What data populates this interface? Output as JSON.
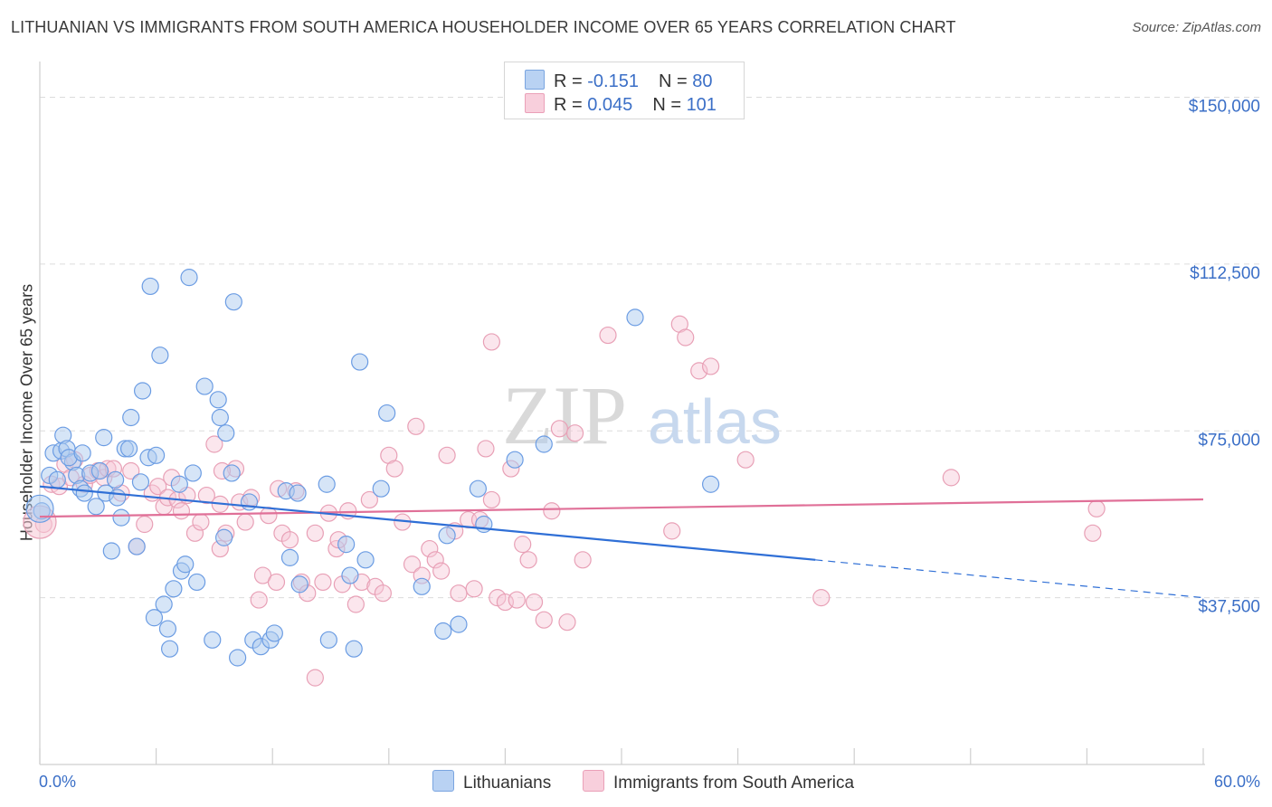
{
  "title": "LITHUANIAN VS IMMIGRANTS FROM SOUTH AMERICA HOUSEHOLDER INCOME OVER 65 YEARS CORRELATION CHART",
  "source": "Source: ZipAtlas.com",
  "watermark": {
    "zip": "ZIP",
    "atlas": "atlas"
  },
  "legend": {
    "rows": [
      {
        "r_label": "R = ",
        "r_value": "-0.151",
        "n_label": "N = ",
        "n_value": "80"
      },
      {
        "r_label": "R = ",
        "r_value": "0.045",
        "n_label": "N = ",
        "n_value": "101"
      }
    ]
  },
  "bottom_legend": {
    "series_a": "Lithuanians",
    "series_b": "Immigrants from South America"
  },
  "chart_data": {
    "type": "scatter",
    "title": "LITHUANIAN VS IMMIGRANTS FROM SOUTH AMERICA HOUSEHOLDER INCOME OVER 65 YEARS CORRELATION CHART",
    "xlabel": "",
    "ylabel": "Householder Income Over 65 years",
    "xlim": [
      0,
      60
    ],
    "ylim": [
      0,
      156000
    ],
    "x_tick_labels": [
      "0.0%",
      "60.0%"
    ],
    "y_ticks": [
      37500,
      75000,
      112500,
      150000
    ],
    "y_tick_labels": [
      "$37,500",
      "$75,000",
      "$112,500",
      "$150,000"
    ],
    "grid": true,
    "legend_position": "top-center",
    "colors": {
      "series_a": "#6b9ce3",
      "series_a_fill": "#aecbf0",
      "series_b": "#e8a0b6",
      "series_b_fill": "#f6c8d6",
      "trend_a": "#2f6fd6",
      "trend_b": "#e07098"
    },
    "series": [
      {
        "name": "Lithuanians",
        "trend": {
          "x": [
            0,
            40
          ],
          "y": [
            62500,
            46000
          ],
          "dashed_to": [
            60,
            37500
          ]
        },
        "points": [
          [
            0.1,
            57000
          ],
          [
            0.5,
            65000
          ],
          [
            0.7,
            70000
          ],
          [
            0.9,
            64000
          ],
          [
            1.1,
            70500
          ],
          [
            1.2,
            74000
          ],
          [
            1.4,
            71000
          ],
          [
            1.7,
            68000
          ],
          [
            1.9,
            65000
          ],
          [
            2.1,
            62000
          ],
          [
            2.3,
            61000
          ],
          [
            2.6,
            65500
          ],
          [
            2.9,
            58000
          ],
          [
            3.3,
            73500
          ],
          [
            3.4,
            61000
          ],
          [
            3.7,
            48000
          ],
          [
            3.9,
            64000
          ],
          [
            4.0,
            60000
          ],
          [
            4.2,
            55500
          ],
          [
            4.4,
            71000
          ],
          [
            4.6,
            71000
          ],
          [
            4.7,
            78000
          ],
          [
            5.0,
            49000
          ],
          [
            5.2,
            63500
          ],
          [
            5.3,
            84000
          ],
          [
            5.6,
            69000
          ],
          [
            5.9,
            33000
          ],
          [
            5.7,
            107500
          ],
          [
            6.0,
            69500
          ],
          [
            6.2,
            92000
          ],
          [
            6.4,
            36000
          ],
          [
            6.6,
            30500
          ],
          [
            6.7,
            26000
          ],
          [
            6.9,
            39500
          ],
          [
            7.2,
            63000
          ],
          [
            7.3,
            43500
          ],
          [
            7.5,
            45000
          ],
          [
            7.7,
            109500
          ],
          [
            7.9,
            65500
          ],
          [
            8.1,
            41000
          ],
          [
            8.5,
            85000
          ],
          [
            8.9,
            28000
          ],
          [
            9.2,
            82000
          ],
          [
            9.3,
            78000
          ],
          [
            9.5,
            51000
          ],
          [
            9.6,
            74500
          ],
          [
            9.9,
            65500
          ],
          [
            10.0,
            104000
          ],
          [
            10.2,
            24000
          ],
          [
            10.8,
            59000
          ],
          [
            11.0,
            28000
          ],
          [
            11.4,
            26500
          ],
          [
            11.9,
            28000
          ],
          [
            12.1,
            29500
          ],
          [
            12.7,
            61500
          ],
          [
            12.9,
            46500
          ],
          [
            13.3,
            61000
          ],
          [
            13.4,
            40500
          ],
          [
            14.8,
            63000
          ],
          [
            14.9,
            28000
          ],
          [
            15.8,
            49500
          ],
          [
            16.0,
            42500
          ],
          [
            16.2,
            26000
          ],
          [
            16.5,
            90500
          ],
          [
            16.8,
            46000
          ],
          [
            17.6,
            62000
          ],
          [
            17.9,
            79000
          ],
          [
            19.7,
            40000
          ],
          [
            20.8,
            30000
          ],
          [
            21.0,
            51500
          ],
          [
            21.6,
            31500
          ],
          [
            22.6,
            62000
          ],
          [
            22.9,
            54000
          ],
          [
            24.5,
            68500
          ],
          [
            26.0,
            72000
          ],
          [
            30.7,
            100500
          ],
          [
            34.6,
            63000
          ],
          [
            1.5,
            69000
          ],
          [
            2.2,
            70000
          ],
          [
            3.1,
            66000
          ]
        ]
      },
      {
        "name": "Immigrants from South America",
        "trend": {
          "x": [
            0,
            60
          ],
          "y": [
            55700,
            59600
          ]
        },
        "points": [
          [
            0.2,
            54000
          ],
          [
            0.6,
            63000
          ],
          [
            1.0,
            62500
          ],
          [
            1.3,
            67500
          ],
          [
            1.6,
            64500
          ],
          [
            1.8,
            68500
          ],
          [
            2.3,
            63000
          ],
          [
            2.6,
            65000
          ],
          [
            3.0,
            66000
          ],
          [
            3.3,
            64500
          ],
          [
            3.5,
            66500
          ],
          [
            3.8,
            66500
          ],
          [
            4.2,
            61000
          ],
          [
            4.7,
            66000
          ],
          [
            5.0,
            49000
          ],
          [
            5.4,
            54000
          ],
          [
            5.8,
            61000
          ],
          [
            6.1,
            62500
          ],
          [
            6.4,
            58000
          ],
          [
            6.6,
            60000
          ],
          [
            6.8,
            64500
          ],
          [
            7.1,
            59500
          ],
          [
            7.3,
            57000
          ],
          [
            7.6,
            60500
          ],
          [
            8.0,
            52000
          ],
          [
            8.3,
            54500
          ],
          [
            8.6,
            60500
          ],
          [
            9.0,
            72000
          ],
          [
            9.3,
            48500
          ],
          [
            9.6,
            52000
          ],
          [
            10.1,
            66500
          ],
          [
            10.3,
            59000
          ],
          [
            10.6,
            54500
          ],
          [
            10.9,
            60000
          ],
          [
            11.3,
            37000
          ],
          [
            11.5,
            42500
          ],
          [
            11.8,
            56000
          ],
          [
            12.2,
            41000
          ],
          [
            12.5,
            52000
          ],
          [
            12.9,
            50500
          ],
          [
            13.2,
            61500
          ],
          [
            13.5,
            41000
          ],
          [
            13.8,
            38500
          ],
          [
            14.2,
            52000
          ],
          [
            14.6,
            41000
          ],
          [
            14.9,
            56500
          ],
          [
            15.3,
            48500
          ],
          [
            15.6,
            40500
          ],
          [
            15.9,
            57000
          ],
          [
            16.3,
            36000
          ],
          [
            16.6,
            41000
          ],
          [
            17.0,
            59500
          ],
          [
            17.3,
            40000
          ],
          [
            17.7,
            38500
          ],
          [
            18.0,
            69500
          ],
          [
            18.3,
            66500
          ],
          [
            18.7,
            54500
          ],
          [
            19.2,
            45000
          ],
          [
            19.4,
            76000
          ],
          [
            19.7,
            42500
          ],
          [
            20.1,
            48500
          ],
          [
            20.4,
            46000
          ],
          [
            20.7,
            43500
          ],
          [
            21.0,
            69500
          ],
          [
            21.4,
            52500
          ],
          [
            21.6,
            38500
          ],
          [
            22.1,
            55000
          ],
          [
            22.4,
            39500
          ],
          [
            22.7,
            55000
          ],
          [
            23.0,
            71000
          ],
          [
            23.3,
            59500
          ],
          [
            23.6,
            37500
          ],
          [
            24.0,
            36500
          ],
          [
            24.3,
            66500
          ],
          [
            24.6,
            37000
          ],
          [
            24.9,
            49500
          ],
          [
            25.2,
            46000
          ],
          [
            25.5,
            36500
          ],
          [
            26.0,
            32500
          ],
          [
            26.4,
            57000
          ],
          [
            26.8,
            75500
          ],
          [
            27.2,
            32000
          ],
          [
            27.6,
            74500
          ],
          [
            28.0,
            46000
          ],
          [
            29.3,
            96500
          ],
          [
            32.6,
            52500
          ],
          [
            33.0,
            99000
          ],
          [
            33.3,
            96000
          ],
          [
            34.0,
            88500
          ],
          [
            34.6,
            89500
          ],
          [
            36.4,
            68500
          ],
          [
            40.3,
            37500
          ],
          [
            47.0,
            64500
          ],
          [
            54.3,
            52000
          ],
          [
            54.5,
            57500
          ],
          [
            14.2,
            19500
          ],
          [
            23.3,
            95000
          ],
          [
            12.3,
            62000
          ],
          [
            9.4,
            66000
          ],
          [
            15.4,
            50500
          ],
          [
            9.3,
            58500
          ]
        ]
      }
    ]
  }
}
